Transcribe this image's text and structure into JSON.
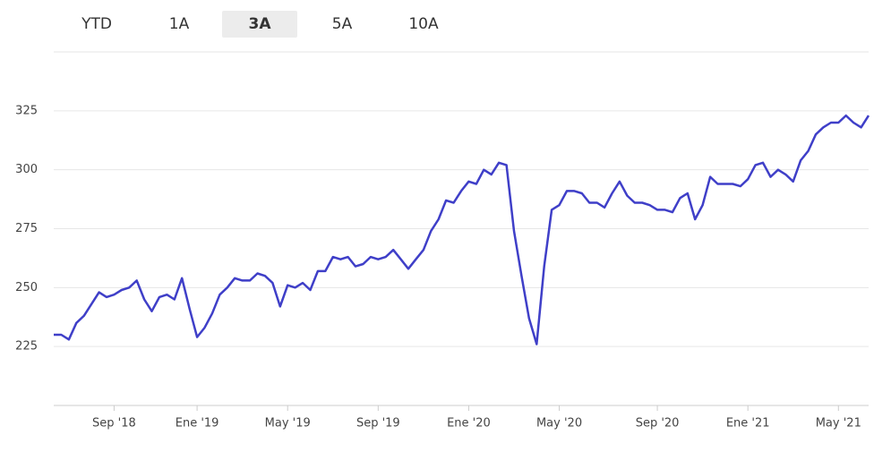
{
  "tabs": {
    "items": [
      "YTD",
      "1A",
      "3A",
      "5A",
      "10A"
    ],
    "selected": 2
  },
  "chart_data": {
    "type": "line",
    "categories": [
      null,
      null,
      null,
      null,
      null,
      null,
      null,
      null,
      "Sep '18",
      null,
      null,
      null,
      null,
      null,
      null,
      null,
      null,
      null,
      null,
      "Ene '19",
      null,
      null,
      null,
      null,
      null,
      null,
      null,
      null,
      null,
      null,
      null,
      "May '19",
      null,
      null,
      null,
      null,
      null,
      null,
      null,
      null,
      null,
      null,
      null,
      "Sep '19",
      null,
      null,
      null,
      null,
      null,
      null,
      null,
      null,
      null,
      null,
      null,
      "Ene '20",
      null,
      null,
      null,
      null,
      null,
      null,
      null,
      null,
      null,
      null,
      null,
      "May '20",
      null,
      null,
      null,
      null,
      null,
      null,
      null,
      null,
      null,
      null,
      null,
      null,
      "Sep '20",
      null,
      null,
      null,
      null,
      null,
      null,
      null,
      null,
      null,
      null,
      null,
      "Ene '21",
      null,
      null,
      null,
      null,
      null,
      null,
      null,
      null,
      null,
      null,
      null,
      "May '21",
      null,
      null,
      null,
      null
    ],
    "values": [
      230,
      230,
      228,
      235,
      238,
      243,
      248,
      246,
      247,
      249,
      250,
      253,
      245,
      240,
      246,
      247,
      245,
      254,
      241,
      229,
      233,
      239,
      247,
      250,
      254,
      253,
      253,
      256,
      255,
      252,
      242,
      251,
      250,
      252,
      249,
      257,
      257,
      263,
      262,
      263,
      259,
      260,
      263,
      262,
      263,
      266,
      262,
      258,
      262,
      266,
      274,
      279,
      287,
      286,
      291,
      295,
      294,
      300,
      298,
      303,
      302,
      274,
      255,
      237,
      226,
      259,
      283,
      285,
      291,
      291,
      290,
      286,
      286,
      284,
      290,
      295,
      289,
      286,
      286,
      285,
      283,
      283,
      282,
      288,
      290,
      279,
      285,
      297,
      294,
      294,
      294,
      293,
      296,
      302,
      303,
      297,
      300,
      298,
      295,
      304,
      308,
      315,
      318,
      320,
      320,
      323,
      320,
      318,
      323
    ],
    "color": "#3f3fc8",
    "ylim": [
      200,
      350
    ],
    "yticks": [
      225,
      250,
      275,
      300,
      325
    ],
    "grid": true
  }
}
